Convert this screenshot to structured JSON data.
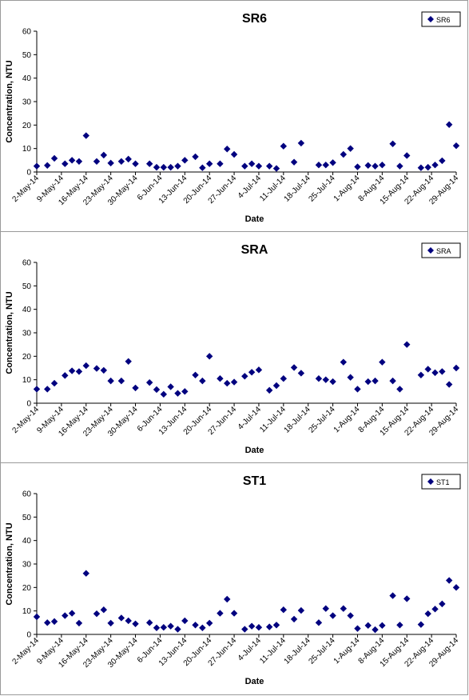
{
  "charts": [
    {
      "type": "scatter",
      "title": "SR6",
      "xlabel": "Date",
      "ylabel": "Concentration, NTU",
      "ylim": [
        0,
        60
      ],
      "yticks": [
        "0",
        "10",
        "20",
        "30",
        "40",
        "50",
        "60"
      ],
      "x_start": "2-May-14",
      "x_end": "29-Aug-14",
      "xticks": [
        "2-May-14",
        "9-May-14",
        "16-May-14",
        "23-May-14",
        "30-May-14",
        "6-Jun-14",
        "13-Jun-14",
        "20-Jun-14",
        "27-Jun-14",
        "4-Jul-14",
        "11-Jul-14",
        "18-Jul-14",
        "25-Jul-14",
        "1-Aug-14",
        "8-Aug-14",
        "15-Aug-14",
        "22-Aug-14",
        "29-Aug-14"
      ],
      "legend": "top-right",
      "grid": false,
      "series": [
        {
          "name": "SR6",
          "color": "#00007f",
          "marker": "diamond",
          "points": [
            [
              "2-May-14",
              2.5
            ],
            [
              "5-May-14",
              2.8
            ],
            [
              "7-May-14",
              5.8
            ],
            [
              "10-May-14",
              3.5
            ],
            [
              "12-May-14",
              5.0
            ],
            [
              "14-May-14",
              4.5
            ],
            [
              "16-May-14",
              15.5
            ],
            [
              "19-May-14",
              4.5
            ],
            [
              "21-May-14",
              7.2
            ],
            [
              "23-May-14",
              3.8
            ],
            [
              "26-May-14",
              4.5
            ],
            [
              "28-May-14",
              5.5
            ],
            [
              "30-May-14",
              3.5
            ],
            [
              "3-Jun-14",
              3.5
            ],
            [
              "5-Jun-14",
              2.0
            ],
            [
              "7-Jun-14",
              2.0
            ],
            [
              "9-Jun-14",
              2.0
            ],
            [
              "11-Jun-14",
              2.5
            ],
            [
              "13-Jun-14",
              5.0
            ],
            [
              "16-Jun-14",
              6.5
            ],
            [
              "18-Jun-14",
              1.8
            ],
            [
              "20-Jun-14",
              3.5
            ],
            [
              "23-Jun-14",
              3.5
            ],
            [
              "25-Jun-14",
              9.8
            ],
            [
              "27-Jun-14",
              7.5
            ],
            [
              "30-Jun-14",
              2.5
            ],
            [
              "2-Jul-14",
              3.5
            ],
            [
              "4-Jul-14",
              2.5
            ],
            [
              "7-Jul-14",
              2.5
            ],
            [
              "9-Jul-14",
              1.5
            ],
            [
              "11-Jul-14",
              11.0
            ],
            [
              "14-Jul-14",
              4.2
            ],
            [
              "16-Jul-14",
              12.3
            ],
            [
              "21-Jul-14",
              3.0
            ],
            [
              "23-Jul-14",
              3.0
            ],
            [
              "25-Jul-14",
              4.0
            ],
            [
              "28-Jul-14",
              7.5
            ],
            [
              "30-Jul-14",
              10.0
            ],
            [
              "1-Aug-14",
              2.2
            ],
            [
              "4-Aug-14",
              2.8
            ],
            [
              "6-Aug-14",
              2.5
            ],
            [
              "8-Aug-14",
              3.0
            ],
            [
              "11-Aug-14",
              12.0
            ],
            [
              "13-Aug-14",
              2.5
            ],
            [
              "15-Aug-14",
              7.0
            ],
            [
              "19-Aug-14",
              1.8
            ],
            [
              "21-Aug-14",
              2.0
            ],
            [
              "23-Aug-14",
              3.0
            ],
            [
              "25-Aug-14",
              4.8
            ],
            [
              "27-Aug-14",
              20.2
            ],
            [
              "29-Aug-14",
              11.2
            ]
          ]
        }
      ]
    },
    {
      "type": "scatter",
      "title": "SRA",
      "xlabel": "Date",
      "ylabel": "Concentration, NTU",
      "ylim": [
        0,
        60
      ],
      "yticks": [
        "0",
        "10",
        "20",
        "30",
        "40",
        "50",
        "60"
      ],
      "x_start": "2-May-14",
      "x_end": "29-Aug-14",
      "xticks": [
        "2-May-14",
        "9-May-14",
        "16-May-14",
        "23-May-14",
        "30-May-14",
        "6-Jun-14",
        "13-Jun-14",
        "20-Jun-14",
        "27-Jun-14",
        "4-Jul-14",
        "11-Jul-14",
        "18-Jul-14",
        "25-Jul-14",
        "1-Aug-14",
        "8-Aug-14",
        "15-Aug-14",
        "22-Aug-14",
        "29-Aug-14"
      ],
      "legend": "top-right",
      "grid": false,
      "series": [
        {
          "name": "SRA",
          "color": "#00007f",
          "marker": "diamond",
          "points": [
            [
              "2-May-14",
              6.0
            ],
            [
              "5-May-14",
              6.0
            ],
            [
              "7-May-14",
              8.5
            ],
            [
              "10-May-14",
              11.8
            ],
            [
              "12-May-14",
              13.8
            ],
            [
              "14-May-14",
              13.5
            ],
            [
              "16-May-14",
              16.0
            ],
            [
              "19-May-14",
              14.8
            ],
            [
              "21-May-14",
              14.0
            ],
            [
              "23-May-14",
              9.5
            ],
            [
              "26-May-14",
              9.5
            ],
            [
              "28-May-14",
              17.8
            ],
            [
              "30-May-14",
              6.5
            ],
            [
              "3-Jun-14",
              8.8
            ],
            [
              "5-Jun-14",
              5.8
            ],
            [
              "7-Jun-14",
              3.8
            ],
            [
              "9-Jun-14",
              7.0
            ],
            [
              "11-Jun-14",
              4.2
            ],
            [
              "13-Jun-14",
              5.0
            ],
            [
              "16-Jun-14",
              12.0
            ],
            [
              "18-Jun-14",
              9.5
            ],
            [
              "20-Jun-14",
              20.0
            ],
            [
              "23-Jun-14",
              10.5
            ],
            [
              "25-Jun-14",
              8.5
            ],
            [
              "27-Jun-14",
              9.0
            ],
            [
              "30-Jun-14",
              11.5
            ],
            [
              "2-Jul-14",
              13.2
            ],
            [
              "4-Jul-14",
              14.2
            ],
            [
              "7-Jul-14",
              5.5
            ],
            [
              "9-Jul-14",
              7.5
            ],
            [
              "11-Jul-14",
              10.5
            ],
            [
              "14-Jul-14",
              15.2
            ],
            [
              "16-Jul-14",
              12.8
            ],
            [
              "21-Jul-14",
              10.5
            ],
            [
              "23-Jul-14",
              10.0
            ],
            [
              "25-Jul-14",
              9.2
            ],
            [
              "28-Jul-14",
              17.5
            ],
            [
              "30-Jul-14",
              11.0
            ],
            [
              "1-Aug-14",
              6.0
            ],
            [
              "4-Aug-14",
              9.2
            ],
            [
              "6-Aug-14",
              9.5
            ],
            [
              "8-Aug-14",
              17.5
            ],
            [
              "11-Aug-14",
              9.5
            ],
            [
              "13-Aug-14",
              6.0
            ],
            [
              "15-Aug-14",
              25.0
            ],
            [
              "19-Aug-14",
              12.0
            ],
            [
              "21-Aug-14",
              14.5
            ],
            [
              "23-Aug-14",
              13.0
            ],
            [
              "25-Aug-14",
              13.5
            ],
            [
              "27-Aug-14",
              8.0
            ],
            [
              "29-Aug-14",
              15.0
            ]
          ]
        }
      ]
    },
    {
      "type": "scatter",
      "title": "ST1",
      "xlabel": "Date",
      "ylabel": "Concentration, NTU",
      "ylim": [
        0,
        60
      ],
      "yticks": [
        "0",
        "10",
        "20",
        "30",
        "40",
        "50",
        "60"
      ],
      "x_start": "2-May-14",
      "x_end": "29-Aug-14",
      "xticks": [
        "2-May-14",
        "9-May-14",
        "16-May-14",
        "23-May-14",
        "30-May-14",
        "6-Jun-14",
        "13-Jun-14",
        "20-Jun-14",
        "27-Jun-14",
        "4-Jul-14",
        "11-Jul-14",
        "18-Jul-14",
        "25-Jul-14",
        "1-Aug-14",
        "8-Aug-14",
        "15-Aug-14",
        "22-Aug-14",
        "29-Aug-14"
      ],
      "legend": "top-right",
      "grid": false,
      "series": [
        {
          "name": "ST1",
          "color": "#00007f",
          "marker": "diamond",
          "points": [
            [
              "2-May-14",
              7.5
            ],
            [
              "5-May-14",
              5.0
            ],
            [
              "7-May-14",
              5.5
            ],
            [
              "10-May-14",
              8.0
            ],
            [
              "12-May-14",
              9.0
            ],
            [
              "14-May-14",
              4.8
            ],
            [
              "16-May-14",
              26.0
            ],
            [
              "19-May-14",
              8.8
            ],
            [
              "21-May-14",
              10.5
            ],
            [
              "23-May-14",
              4.8
            ],
            [
              "26-May-14",
              7.0
            ],
            [
              "28-May-14",
              5.8
            ],
            [
              "30-May-14",
              4.5
            ],
            [
              "3-Jun-14",
              5.0
            ],
            [
              "5-Jun-14",
              2.8
            ],
            [
              "7-Jun-14",
              3.0
            ],
            [
              "9-Jun-14",
              3.5
            ],
            [
              "11-Jun-14",
              2.2
            ],
            [
              "13-Jun-14",
              5.8
            ],
            [
              "16-Jun-14",
              4.0
            ],
            [
              "18-Jun-14",
              2.8
            ],
            [
              "20-Jun-14",
              4.8
            ],
            [
              "23-Jun-14",
              9.0
            ],
            [
              "25-Jun-14",
              15.0
            ],
            [
              "27-Jun-14",
              9.0
            ],
            [
              "30-Jun-14",
              2.2
            ],
            [
              "2-Jul-14",
              3.5
            ],
            [
              "4-Jul-14",
              3.0
            ],
            [
              "7-Jul-14",
              3.2
            ],
            [
              "9-Jul-14",
              4.0
            ],
            [
              "11-Jul-14",
              10.5
            ],
            [
              "14-Jul-14",
              6.5
            ],
            [
              "16-Jul-14",
              10.2
            ],
            [
              "21-Jul-14",
              5.0
            ],
            [
              "23-Jul-14",
              11.0
            ],
            [
              "25-Jul-14",
              8.0
            ],
            [
              "28-Jul-14",
              11.0
            ],
            [
              "30-Jul-14",
              8.0
            ],
            [
              "1-Aug-14",
              2.5
            ],
            [
              "4-Aug-14",
              3.8
            ],
            [
              "6-Aug-14",
              2.0
            ],
            [
              "8-Aug-14",
              3.8
            ],
            [
              "11-Aug-14",
              16.5
            ],
            [
              "13-Aug-14",
              4.0
            ],
            [
              "15-Aug-14",
              15.2
            ],
            [
              "19-Aug-14",
              4.2
            ],
            [
              "21-Aug-14",
              8.8
            ],
            [
              "23-Aug-14",
              10.8
            ],
            [
              "25-Aug-14",
              13.0
            ],
            [
              "27-Aug-14",
              23.0
            ],
            [
              "29-Aug-14",
              20.0
            ]
          ]
        }
      ]
    }
  ]
}
